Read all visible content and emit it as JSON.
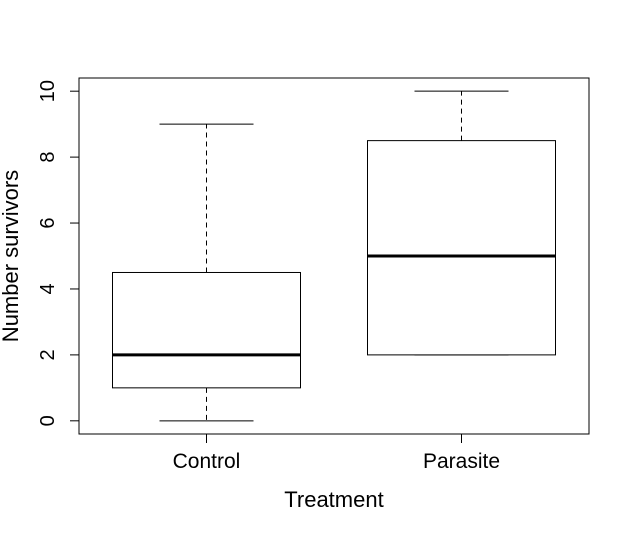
{
  "chart_data": {
    "type": "boxplot",
    "title": "",
    "xlabel": "Treatment",
    "ylabel": "Number survivors",
    "ylim": [
      -0.4,
      10.4
    ],
    "yticks": [
      0,
      2,
      4,
      6,
      8,
      10
    ],
    "ytick_labels": [
      "0",
      "2",
      "4",
      "6",
      "8",
      "10"
    ],
    "categories": [
      "Control",
      "Parasite"
    ],
    "boxes": [
      {
        "category": "Control",
        "whisker_low": 0,
        "q1": 1,
        "median": 2,
        "q3": 4.5,
        "whisker_high": 9
      },
      {
        "category": "Parasite",
        "whisker_low": 2,
        "q1": 2,
        "median": 5,
        "q3": 8.5,
        "whisker_high": 10
      }
    ],
    "grid": false,
    "colors": {
      "box_fill": "#ffffff",
      "stroke": "#000000",
      "median": "#000000"
    }
  }
}
